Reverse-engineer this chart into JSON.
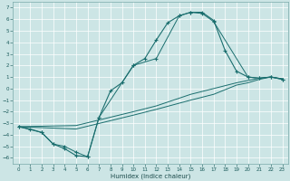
{
  "xlabel": "Humidex (Indice chaleur)",
  "bg_color": "#cce5e5",
  "grid_color": "#ffffff",
  "line_color": "#1a6e6e",
  "xlim": [
    -0.5,
    23.5
  ],
  "ylim": [
    -6.5,
    7.5
  ],
  "xticks": [
    0,
    1,
    2,
    3,
    4,
    5,
    6,
    7,
    8,
    9,
    10,
    11,
    12,
    13,
    14,
    15,
    16,
    17,
    18,
    19,
    20,
    21,
    22,
    23
  ],
  "yticks": [
    -6,
    -5,
    -4,
    -3,
    -2,
    -1,
    0,
    1,
    2,
    3,
    4,
    5,
    6,
    7
  ],
  "line1_x": [
    0,
    1,
    2,
    3,
    4,
    5,
    6,
    7,
    8,
    9,
    10,
    11,
    12,
    13,
    14,
    15,
    16,
    17,
    18,
    19,
    20,
    21,
    22,
    23
  ],
  "line1_y": [
    -3.3,
    -3.5,
    -3.8,
    -4.8,
    -5.2,
    -5.8,
    -5.9,
    -2.5,
    -0.2,
    0.5,
    2.0,
    2.6,
    4.2,
    5.7,
    6.3,
    6.6,
    6.6,
    5.9,
    3.3,
    1.5,
    1.0,
    0.9,
    1.0,
    0.8
  ],
  "line2_x": [
    0,
    2,
    3,
    4,
    5,
    6,
    7,
    10,
    12,
    14,
    15,
    16,
    17,
    20,
    21,
    22,
    23
  ],
  "line2_y": [
    -3.3,
    -3.8,
    -4.8,
    -5.0,
    -5.5,
    -5.9,
    -2.5,
    2.0,
    2.6,
    6.3,
    6.6,
    6.5,
    5.8,
    1.0,
    0.9,
    1.0,
    0.8
  ],
  "line3_x": [
    0,
    5,
    10,
    12,
    15,
    17,
    19,
    20,
    21,
    22,
    23
  ],
  "line3_y": [
    -3.3,
    -3.2,
    -2.0,
    -1.5,
    -0.5,
    0.0,
    0.5,
    0.7,
    0.9,
    1.0,
    0.85
  ],
  "line4_x": [
    0,
    5,
    10,
    12,
    15,
    17,
    19,
    20,
    21,
    22,
    23
  ],
  "line4_y": [
    -3.3,
    -3.5,
    -2.3,
    -1.8,
    -1.0,
    -0.5,
    0.3,
    0.5,
    0.8,
    1.0,
    0.85
  ]
}
